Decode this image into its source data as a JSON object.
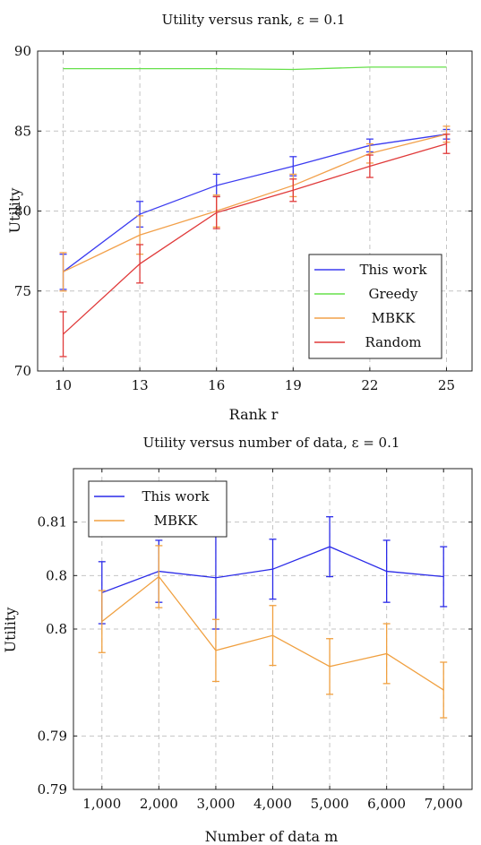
{
  "chart_data": [
    {
      "type": "line",
      "title": "Utility versus rank, ε = 0.1",
      "xlabel": "Rank r",
      "ylabel": "Utility",
      "x": [
        10,
        13,
        16,
        19,
        22,
        25
      ],
      "x_tick_labels": [
        "10",
        "13",
        "16",
        "19",
        "22",
        "25"
      ],
      "xlim": [
        9,
        26
      ],
      "ylim": [
        70,
        90
      ],
      "y_ticks": [
        70,
        75,
        80,
        85,
        90
      ],
      "y_tick_labels": [
        "70",
        "75",
        "80",
        "85",
        "90"
      ],
      "grid": true,
      "legend_position": "bottom-right",
      "series": [
        {
          "name": "This work",
          "color": "#3b3bf0",
          "values": [
            76.2,
            79.8,
            81.6,
            82.8,
            84.1,
            84.8
          ],
          "err": [
            1.1,
            0.8,
            0.7,
            0.6,
            0.4,
            0.3
          ]
        },
        {
          "name": "Greedy",
          "color": "#66e04a",
          "values": [
            88.9,
            88.9,
            88.9,
            88.85,
            89.0,
            89.0
          ],
          "err": null
        },
        {
          "name": "MBKK",
          "color": "#f2a04a",
          "values": [
            76.2,
            78.5,
            80.0,
            81.6,
            83.6,
            84.8
          ],
          "err": [
            1.2,
            1.2,
            1.0,
            0.7,
            0.6,
            0.5
          ]
        },
        {
          "name": "Random",
          "color": "#e03a3a",
          "values": [
            72.3,
            76.7,
            79.9,
            81.3,
            82.8,
            84.2
          ],
          "err": [
            1.4,
            1.2,
            1.0,
            0.7,
            0.7,
            0.6
          ]
        }
      ]
    },
    {
      "type": "line",
      "title": "Utility versus number of data, ε = 0.1",
      "xlabel": "Number of data m",
      "ylabel": "Utility",
      "x": [
        1000,
        2000,
        3000,
        4000,
        5000,
        6000,
        7000
      ],
      "x_tick_labels": [
        "1,000",
        "2,000",
        "3,000",
        "4,000",
        "5,000",
        "6,000",
        "7,000"
      ],
      "xlim": [
        500,
        7500
      ],
      "ylim": [
        0.785,
        0.815
      ],
      "y_ticks": [
        0.785,
        0.79,
        0.8,
        0.805,
        0.81
      ],
      "y_tick_labels": [
        "0.79",
        "0.79",
        "0.8",
        "0.8",
        "0.81"
      ],
      "grid": true,
      "legend_position": "top-left",
      "series": [
        {
          "name": "This work",
          "color": "#2a2ae8",
          "values": [
            0.8034,
            0.8054,
            0.8048,
            0.8056,
            0.8077,
            0.8054,
            0.8049
          ],
          "err": [
            0.0029,
            0.0029,
            0.0048,
            0.0028,
            0.0028,
            0.0029,
            0.0028
          ]
        },
        {
          "name": "MBKK",
          "color": "#f0a040",
          "values": [
            0.8007,
            0.8049,
            0.798,
            0.7994,
            0.7965,
            0.7977,
            0.7943
          ],
          "err": [
            0.0029,
            0.0029,
            0.0029,
            0.0028,
            0.0026,
            0.0028,
            0.0026
          ]
        }
      ]
    }
  ]
}
